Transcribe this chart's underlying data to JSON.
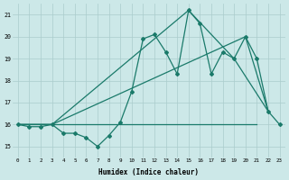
{
  "xlabel": "Humidex (Indice chaleur)",
  "background_color": "#cce8e8",
  "grid_color": "#aacccc",
  "line_color": "#1a7a6a",
  "xlim": [
    -0.5,
    23.5
  ],
  "ylim": [
    14.5,
    21.5
  ],
  "xticks": [
    0,
    1,
    2,
    3,
    4,
    5,
    6,
    7,
    8,
    9,
    10,
    11,
    12,
    13,
    14,
    15,
    16,
    17,
    18,
    19,
    20,
    21,
    22,
    23
  ],
  "yticks": [
    15,
    16,
    17,
    18,
    19,
    20,
    21
  ],
  "series1_x": [
    0,
    1,
    2,
    3,
    4,
    5,
    6,
    7,
    8,
    9,
    10,
    11,
    12,
    13,
    14,
    15,
    16,
    17,
    18,
    19,
    20,
    21,
    22,
    23
  ],
  "series1_y": [
    16.0,
    15.9,
    15.9,
    16.0,
    15.6,
    15.6,
    15.4,
    15.0,
    15.5,
    16.1,
    17.5,
    19.9,
    20.1,
    19.3,
    18.3,
    21.2,
    20.6,
    18.3,
    19.3,
    19.0,
    20.0,
    19.0,
    16.6,
    16.0
  ],
  "series2_x": [
    0,
    3,
    20,
    22
  ],
  "series2_y": [
    16.0,
    16.0,
    20.0,
    16.6
  ],
  "series3_x": [
    0,
    21
  ],
  "series3_y": [
    16.0,
    16.0
  ],
  "series4_x": [
    0,
    3,
    15,
    19,
    22
  ],
  "series4_y": [
    16.0,
    16.0,
    21.2,
    19.0,
    16.6
  ]
}
